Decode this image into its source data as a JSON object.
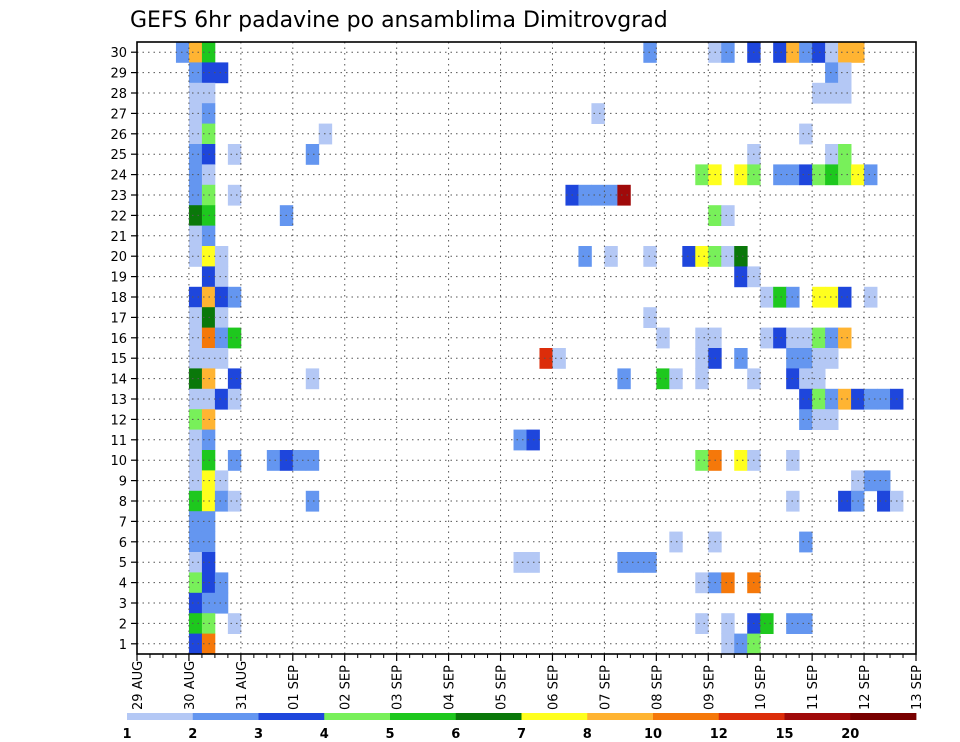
{
  "chart_data": {
    "type": "heatmap",
    "title": "GEFS 6hr padavine po ansamblima Dimitrovgrad",
    "xlabel": "",
    "ylabel": "",
    "x_tick_labels": [
      "29 AUG",
      "30 AUG",
      "31 AUG",
      "01 SEP",
      "02 SEP",
      "03 SEP",
      "04 SEP",
      "05 SEP",
      "06 SEP",
      "07 SEP",
      "08 SEP",
      "09 SEP",
      "10 SEP",
      "11 SEP",
      "12 SEP",
      "13 SEP"
    ],
    "x_units": "6-hour steps from 29 AUG 00Z",
    "x_range": [
      0,
      60
    ],
    "y_tick_labels": [
      1,
      2,
      3,
      4,
      5,
      6,
      7,
      8,
      9,
      10,
      11,
      12,
      13,
      14,
      15,
      16,
      17,
      18,
      19,
      20,
      21,
      22,
      23,
      24,
      25,
      26,
      27,
      28,
      29,
      30
    ],
    "y_label_meaning": "ensemble member",
    "grid": true,
    "colorbar": {
      "labels": [
        "1",
        "2",
        "3",
        "4",
        "5",
        "6",
        "7",
        "8",
        "10",
        "12",
        "15",
        "20"
      ],
      "colors": [
        "#b4c8f5",
        "#6496f0",
        "#1e46dc",
        "#78f05a",
        "#1ec81e",
        "#0a780a",
        "#ffff1e",
        "#ffb432",
        "#f5780a",
        "#dc2d0a",
        "#a00a0a",
        "#780000"
      ]
    },
    "cell_encoding": "each cell = [member, 6hr-step, color-class index 1..12]",
    "cells": [
      [
        30,
        3,
        2
      ],
      [
        30,
        4,
        8
      ],
      [
        30,
        5,
        5
      ],
      [
        30,
        39,
        2
      ],
      [
        30,
        44,
        1
      ],
      [
        30,
        45,
        2
      ],
      [
        30,
        47,
        3
      ],
      [
        30,
        49,
        3
      ],
      [
        30,
        50,
        8
      ],
      [
        30,
        51,
        2
      ],
      [
        30,
        52,
        3
      ],
      [
        30,
        53,
        1
      ],
      [
        30,
        54,
        8
      ],
      [
        30,
        55,
        8
      ],
      [
        29,
        4,
        2
      ],
      [
        29,
        5,
        3
      ],
      [
        29,
        6,
        3
      ],
      [
        29,
        53,
        2
      ],
      [
        29,
        54,
        1
      ],
      [
        28,
        4,
        1
      ],
      [
        28,
        5,
        1
      ],
      [
        28,
        52,
        1
      ],
      [
        28,
        53,
        1
      ],
      [
        28,
        54,
        1
      ],
      [
        27,
        4,
        1
      ],
      [
        27,
        5,
        2
      ],
      [
        27,
        35,
        1
      ],
      [
        26,
        4,
        1
      ],
      [
        26,
        5,
        4
      ],
      [
        26,
        14,
        1
      ],
      [
        26,
        51,
        1
      ],
      [
        25,
        4,
        2
      ],
      [
        25,
        5,
        3
      ],
      [
        25,
        7,
        1
      ],
      [
        25,
        13,
        2
      ],
      [
        25,
        47,
        1
      ],
      [
        25,
        53,
        1
      ],
      [
        25,
        54,
        4
      ],
      [
        24,
        4,
        2
      ],
      [
        24,
        5,
        1
      ],
      [
        24,
        43,
        4
      ],
      [
        24,
        44,
        7
      ],
      [
        24,
        46,
        7
      ],
      [
        24,
        47,
        4
      ],
      [
        24,
        49,
        2
      ],
      [
        24,
        50,
        2
      ],
      [
        24,
        51,
        3
      ],
      [
        24,
        52,
        4
      ],
      [
        24,
        53,
        5
      ],
      [
        24,
        54,
        4
      ],
      [
        24,
        55,
        7
      ],
      [
        24,
        56,
        2
      ],
      [
        23,
        4,
        2
      ],
      [
        23,
        5,
        4
      ],
      [
        23,
        7,
        1
      ],
      [
        23,
        33,
        3
      ],
      [
        23,
        34,
        2
      ],
      [
        23,
        35,
        2
      ],
      [
        23,
        36,
        2
      ],
      [
        23,
        37,
        11
      ],
      [
        22,
        4,
        6
      ],
      [
        22,
        5,
        5
      ],
      [
        22,
        11,
        2
      ],
      [
        22,
        44,
        4
      ],
      [
        22,
        45,
        1
      ],
      [
        21,
        4,
        1
      ],
      [
        21,
        5,
        2
      ],
      [
        20,
        4,
        1
      ],
      [
        20,
        5,
        7
      ],
      [
        20,
        6,
        1
      ],
      [
        20,
        34,
        2
      ],
      [
        20,
        36,
        1
      ],
      [
        20,
        39,
        1
      ],
      [
        20,
        42,
        3
      ],
      [
        20,
        43,
        7
      ],
      [
        20,
        44,
        4
      ],
      [
        20,
        45,
        1
      ],
      [
        20,
        46,
        6
      ],
      [
        19,
        5,
        3
      ],
      [
        19,
        6,
        1
      ],
      [
        19,
        46,
        3
      ],
      [
        19,
        47,
        1
      ],
      [
        18,
        4,
        3
      ],
      [
        18,
        5,
        8
      ],
      [
        18,
        6,
        3
      ],
      [
        18,
        7,
        2
      ],
      [
        18,
        48,
        1
      ],
      [
        18,
        49,
        5
      ],
      [
        18,
        50,
        2
      ],
      [
        18,
        52,
        7
      ],
      [
        18,
        53,
        7
      ],
      [
        18,
        54,
        3
      ],
      [
        18,
        56,
        1
      ],
      [
        17,
        4,
        1
      ],
      [
        17,
        5,
        6
      ],
      [
        17,
        6,
        1
      ],
      [
        17,
        39,
        1
      ],
      [
        16,
        4,
        1
      ],
      [
        16,
        5,
        9
      ],
      [
        16,
        6,
        2
      ],
      [
        16,
        7,
        5
      ],
      [
        16,
        40,
        1
      ],
      [
        16,
        43,
        1
      ],
      [
        16,
        44,
        1
      ],
      [
        16,
        48,
        1
      ],
      [
        16,
        49,
        3
      ],
      [
        16,
        50,
        1
      ],
      [
        16,
        51,
        1
      ],
      [
        16,
        52,
        4
      ],
      [
        16,
        53,
        2
      ],
      [
        16,
        54,
        8
      ],
      [
        15,
        4,
        1
      ],
      [
        15,
        5,
        1
      ],
      [
        15,
        6,
        1
      ],
      [
        15,
        31,
        10
      ],
      [
        15,
        32,
        1
      ],
      [
        15,
        43,
        1
      ],
      [
        15,
        44,
        3
      ],
      [
        15,
        46,
        2
      ],
      [
        15,
        50,
        2
      ],
      [
        15,
        51,
        2
      ],
      [
        15,
        52,
        1
      ],
      [
        15,
        53,
        1
      ],
      [
        14,
        4,
        6
      ],
      [
        14,
        5,
        8
      ],
      [
        14,
        7,
        3
      ],
      [
        14,
        13,
        1
      ],
      [
        14,
        37,
        2
      ],
      [
        14,
        40,
        5
      ],
      [
        14,
        41,
        1
      ],
      [
        14,
        43,
        1
      ],
      [
        14,
        47,
        1
      ],
      [
        14,
        50,
        3
      ],
      [
        14,
        51,
        1
      ],
      [
        14,
        52,
        1
      ],
      [
        13,
        4,
        1
      ],
      [
        13,
        5,
        1
      ],
      [
        13,
        6,
        3
      ],
      [
        13,
        7,
        1
      ],
      [
        13,
        51,
        3
      ],
      [
        13,
        52,
        4
      ],
      [
        13,
        53,
        2
      ],
      [
        13,
        54,
        8
      ],
      [
        13,
        55,
        3
      ],
      [
        13,
        56,
        2
      ],
      [
        13,
        57,
        2
      ],
      [
        13,
        58,
        3
      ],
      [
        12,
        4,
        4
      ],
      [
        12,
        5,
        8
      ],
      [
        12,
        51,
        2
      ],
      [
        12,
        52,
        1
      ],
      [
        12,
        53,
        1
      ],
      [
        11,
        4,
        1
      ],
      [
        11,
        5,
        2
      ],
      [
        11,
        29,
        2
      ],
      [
        11,
        30,
        3
      ],
      [
        10,
        4,
        1
      ],
      [
        10,
        5,
        5
      ],
      [
        10,
        7,
        2
      ],
      [
        10,
        10,
        2
      ],
      [
        10,
        11,
        3
      ],
      [
        10,
        12,
        2
      ],
      [
        10,
        13,
        2
      ],
      [
        10,
        43,
        4
      ],
      [
        10,
        44,
        9
      ],
      [
        10,
        46,
        7
      ],
      [
        10,
        47,
        1
      ],
      [
        10,
        50,
        1
      ],
      [
        9,
        4,
        1
      ],
      [
        9,
        5,
        7
      ],
      [
        9,
        6,
        1
      ],
      [
        9,
        55,
        1
      ],
      [
        9,
        56,
        2
      ],
      [
        9,
        57,
        2
      ],
      [
        8,
        4,
        5
      ],
      [
        8,
        5,
        7
      ],
      [
        8,
        6,
        2
      ],
      [
        8,
        7,
        1
      ],
      [
        8,
        13,
        2
      ],
      [
        8,
        50,
        1
      ],
      [
        8,
        54,
        3
      ],
      [
        8,
        55,
        2
      ],
      [
        8,
        57,
        3
      ],
      [
        8,
        58,
        1
      ],
      [
        7,
        4,
        2
      ],
      [
        7,
        5,
        2
      ],
      [
        6,
        4,
        2
      ],
      [
        6,
        5,
        2
      ],
      [
        6,
        41,
        1
      ],
      [
        6,
        44,
        1
      ],
      [
        6,
        51,
        2
      ],
      [
        5,
        4,
        1
      ],
      [
        5,
        5,
        3
      ],
      [
        5,
        29,
        1
      ],
      [
        5,
        30,
        1
      ],
      [
        5,
        37,
        2
      ],
      [
        5,
        38,
        2
      ],
      [
        5,
        39,
        2
      ],
      [
        4,
        4,
        4
      ],
      [
        4,
        5,
        3
      ],
      [
        4,
        6,
        2
      ],
      [
        4,
        43,
        1
      ],
      [
        4,
        44,
        2
      ],
      [
        4,
        45,
        9
      ],
      [
        4,
        47,
        9
      ],
      [
        3,
        4,
        3
      ],
      [
        3,
        5,
        2
      ],
      [
        3,
        6,
        2
      ],
      [
        2,
        4,
        5
      ],
      [
        2,
        5,
        4
      ],
      [
        2,
        7,
        1
      ],
      [
        2,
        43,
        1
      ],
      [
        2,
        45,
        1
      ],
      [
        2,
        47,
        3
      ],
      [
        2,
        48,
        5
      ],
      [
        2,
        50,
        2
      ],
      [
        2,
        51,
        2
      ],
      [
        1,
        4,
        3
      ],
      [
        1,
        5,
        9
      ],
      [
        1,
        45,
        1
      ],
      [
        1,
        46,
        2
      ],
      [
        1,
        47,
        4
      ]
    ]
  }
}
